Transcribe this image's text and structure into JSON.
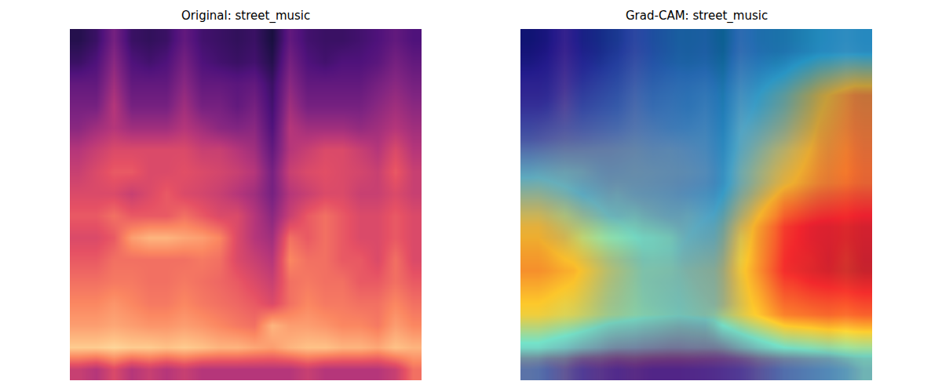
{
  "chart_data": [
    {
      "type": "heatmap",
      "title": "Original: street_music",
      "tick_labels": false,
      "zlim": [
        0,
        1
      ],
      "z": [
        [
          0.15,
          0.2,
          0.35,
          0.2,
          0.18,
          0.2,
          0.3,
          0.22,
          0.2,
          0.18,
          0.2,
          0.12,
          0.3,
          0.22,
          0.2,
          0.2,
          0.22,
          0.25,
          0.3,
          0.25
        ],
        [
          0.2,
          0.25,
          0.4,
          0.25,
          0.22,
          0.25,
          0.35,
          0.25,
          0.22,
          0.2,
          0.22,
          0.15,
          0.35,
          0.25,
          0.22,
          0.25,
          0.25,
          0.28,
          0.35,
          0.3
        ],
        [
          0.3,
          0.3,
          0.45,
          0.3,
          0.3,
          0.3,
          0.4,
          0.3,
          0.3,
          0.28,
          0.3,
          0.2,
          0.4,
          0.3,
          0.3,
          0.3,
          0.3,
          0.35,
          0.4,
          0.35
        ],
        [
          0.35,
          0.35,
          0.5,
          0.35,
          0.35,
          0.35,
          0.45,
          0.35,
          0.35,
          0.3,
          0.35,
          0.22,
          0.45,
          0.35,
          0.35,
          0.35,
          0.35,
          0.4,
          0.45,
          0.4
        ],
        [
          0.4,
          0.45,
          0.5,
          0.45,
          0.45,
          0.45,
          0.5,
          0.45,
          0.4,
          0.38,
          0.4,
          0.25,
          0.5,
          0.45,
          0.45,
          0.45,
          0.42,
          0.45,
          0.5,
          0.45
        ],
        [
          0.5,
          0.55,
          0.6,
          0.6,
          0.6,
          0.6,
          0.6,
          0.55,
          0.55,
          0.5,
          0.45,
          0.3,
          0.5,
          0.55,
          0.6,
          0.6,
          0.55,
          0.5,
          0.6,
          0.5
        ],
        [
          0.55,
          0.6,
          0.65,
          0.65,
          0.6,
          0.6,
          0.62,
          0.6,
          0.58,
          0.55,
          0.5,
          0.35,
          0.55,
          0.6,
          0.62,
          0.6,
          0.58,
          0.55,
          0.65,
          0.55
        ],
        [
          0.6,
          0.6,
          0.6,
          0.55,
          0.6,
          0.65,
          0.6,
          0.58,
          0.55,
          0.5,
          0.45,
          0.35,
          0.5,
          0.55,
          0.6,
          0.6,
          0.55,
          0.55,
          0.6,
          0.55
        ],
        [
          0.65,
          0.65,
          0.7,
          0.65,
          0.65,
          0.65,
          0.7,
          0.65,
          0.6,
          0.6,
          0.5,
          0.4,
          0.55,
          0.65,
          0.7,
          0.65,
          0.6,
          0.6,
          0.65,
          0.6
        ],
        [
          0.6,
          0.6,
          0.65,
          0.8,
          0.85,
          0.85,
          0.82,
          0.8,
          0.75,
          0.6,
          0.5,
          0.45,
          0.7,
          0.65,
          0.7,
          0.65,
          0.6,
          0.6,
          0.65,
          0.6
        ],
        [
          0.65,
          0.65,
          0.7,
          0.7,
          0.7,
          0.7,
          0.7,
          0.72,
          0.7,
          0.6,
          0.55,
          0.5,
          0.75,
          0.7,
          0.7,
          0.65,
          0.65,
          0.6,
          0.7,
          0.6
        ],
        [
          0.7,
          0.7,
          0.72,
          0.72,
          0.7,
          0.7,
          0.72,
          0.7,
          0.68,
          0.65,
          0.6,
          0.55,
          0.7,
          0.72,
          0.7,
          0.7,
          0.65,
          0.65,
          0.7,
          0.65
        ],
        [
          0.75,
          0.75,
          0.78,
          0.75,
          0.72,
          0.72,
          0.75,
          0.72,
          0.7,
          0.68,
          0.65,
          0.6,
          0.7,
          0.75,
          0.72,
          0.72,
          0.7,
          0.7,
          0.75,
          0.7
        ],
        [
          0.8,
          0.8,
          0.82,
          0.8,
          0.78,
          0.78,
          0.8,
          0.78,
          0.75,
          0.72,
          0.7,
          0.85,
          0.8,
          0.8,
          0.78,
          0.75,
          0.75,
          0.72,
          0.8,
          0.75
        ],
        [
          0.9,
          0.9,
          0.92,
          0.9,
          0.9,
          0.88,
          0.9,
          0.88,
          0.85,
          0.85,
          0.82,
          0.8,
          0.85,
          0.88,
          0.88,
          0.85,
          0.85,
          0.82,
          0.88,
          0.85
        ],
        [
          0.55,
          0.5,
          0.6,
          0.5,
          0.55,
          0.5,
          0.55,
          0.5,
          0.5,
          0.5,
          0.5,
          0.5,
          0.5,
          0.55,
          0.5,
          0.5,
          0.5,
          0.5,
          0.55,
          0.7
        ]
      ]
    },
    {
      "type": "heatmap",
      "title": "Grad-CAM: street_music",
      "tick_labels": false,
      "zlim": [
        0,
        1
      ],
      "z": [
        [
          0.15,
          0.2,
          0.35,
          0.2,
          0.18,
          0.2,
          0.3,
          0.22,
          0.2,
          0.18,
          0.2,
          0.12,
          0.3,
          0.22,
          0.2,
          0.2,
          0.22,
          0.25,
          0.3,
          0.25
        ],
        [
          0.2,
          0.25,
          0.4,
          0.25,
          0.22,
          0.25,
          0.35,
          0.25,
          0.22,
          0.2,
          0.22,
          0.15,
          0.35,
          0.25,
          0.22,
          0.25,
          0.25,
          0.28,
          0.35,
          0.3
        ],
        [
          0.3,
          0.3,
          0.45,
          0.3,
          0.3,
          0.3,
          0.4,
          0.3,
          0.3,
          0.28,
          0.3,
          0.2,
          0.4,
          0.3,
          0.3,
          0.3,
          0.3,
          0.35,
          0.4,
          0.35
        ],
        [
          0.35,
          0.35,
          0.5,
          0.35,
          0.35,
          0.35,
          0.45,
          0.35,
          0.35,
          0.3,
          0.35,
          0.22,
          0.45,
          0.35,
          0.35,
          0.35,
          0.35,
          0.4,
          0.45,
          0.4
        ],
        [
          0.4,
          0.45,
          0.5,
          0.45,
          0.45,
          0.45,
          0.5,
          0.45,
          0.4,
          0.38,
          0.4,
          0.25,
          0.5,
          0.45,
          0.45,
          0.45,
          0.42,
          0.45,
          0.5,
          0.45
        ],
        [
          0.5,
          0.55,
          0.6,
          0.6,
          0.6,
          0.6,
          0.6,
          0.55,
          0.55,
          0.5,
          0.45,
          0.3,
          0.5,
          0.55,
          0.6,
          0.6,
          0.55,
          0.5,
          0.6,
          0.5
        ],
        [
          0.55,
          0.6,
          0.65,
          0.65,
          0.6,
          0.6,
          0.62,
          0.6,
          0.58,
          0.55,
          0.5,
          0.35,
          0.55,
          0.6,
          0.62,
          0.6,
          0.58,
          0.55,
          0.65,
          0.55
        ],
        [
          0.6,
          0.6,
          0.6,
          0.55,
          0.6,
          0.65,
          0.6,
          0.58,
          0.55,
          0.5,
          0.45,
          0.35,
          0.5,
          0.55,
          0.6,
          0.6,
          0.55,
          0.55,
          0.6,
          0.55
        ],
        [
          0.65,
          0.65,
          0.7,
          0.65,
          0.65,
          0.65,
          0.7,
          0.65,
          0.6,
          0.6,
          0.5,
          0.4,
          0.55,
          0.65,
          0.7,
          0.65,
          0.6,
          0.6,
          0.65,
          0.6
        ],
        [
          0.6,
          0.6,
          0.65,
          0.8,
          0.85,
          0.85,
          0.82,
          0.8,
          0.75,
          0.6,
          0.5,
          0.45,
          0.7,
          0.65,
          0.7,
          0.65,
          0.6,
          0.6,
          0.65,
          0.6
        ],
        [
          0.65,
          0.65,
          0.7,
          0.7,
          0.7,
          0.7,
          0.7,
          0.72,
          0.7,
          0.6,
          0.55,
          0.5,
          0.75,
          0.7,
          0.7,
          0.65,
          0.65,
          0.6,
          0.7,
          0.6
        ],
        [
          0.7,
          0.7,
          0.72,
          0.72,
          0.7,
          0.7,
          0.72,
          0.7,
          0.68,
          0.65,
          0.6,
          0.55,
          0.7,
          0.72,
          0.7,
          0.7,
          0.65,
          0.65,
          0.7,
          0.65
        ],
        [
          0.75,
          0.75,
          0.78,
          0.75,
          0.72,
          0.72,
          0.75,
          0.72,
          0.7,
          0.68,
          0.65,
          0.6,
          0.7,
          0.75,
          0.72,
          0.72,
          0.7,
          0.7,
          0.75,
          0.7
        ],
        [
          0.8,
          0.8,
          0.82,
          0.8,
          0.78,
          0.78,
          0.8,
          0.78,
          0.75,
          0.72,
          0.7,
          0.85,
          0.8,
          0.8,
          0.78,
          0.75,
          0.75,
          0.72,
          0.8,
          0.75
        ],
        [
          0.9,
          0.9,
          0.92,
          0.9,
          0.9,
          0.88,
          0.9,
          0.88,
          0.85,
          0.85,
          0.82,
          0.8,
          0.85,
          0.88,
          0.88,
          0.85,
          0.85,
          0.82,
          0.88,
          0.85
        ],
        [
          0.55,
          0.5,
          0.6,
          0.5,
          0.55,
          0.5,
          0.55,
          0.5,
          0.5,
          0.5,
          0.5,
          0.5,
          0.5,
          0.55,
          0.5,
          0.5,
          0.5,
          0.5,
          0.55,
          0.7
        ]
      ],
      "cam_zlim": [
        0,
        1
      ],
      "cam": [
        [
          0.05,
          0.08,
          0.15,
          0.2,
          0.25,
          0.25,
          0.28,
          0.3,
          0.35,
          0.35
        ],
        [
          0.1,
          0.15,
          0.2,
          0.25,
          0.28,
          0.3,
          0.35,
          0.45,
          0.6,
          0.7
        ],
        [
          0.2,
          0.22,
          0.25,
          0.28,
          0.3,
          0.32,
          0.4,
          0.5,
          0.65,
          0.72
        ],
        [
          0.4,
          0.35,
          0.3,
          0.3,
          0.3,
          0.32,
          0.45,
          0.6,
          0.7,
          0.75
        ],
        [
          0.6,
          0.5,
          0.4,
          0.35,
          0.35,
          0.4,
          0.6,
          0.85,
          0.9,
          0.92
        ],
        [
          0.7,
          0.65,
          0.5,
          0.4,
          0.4,
          0.45,
          0.65,
          0.88,
          0.92,
          0.95
        ],
        [
          0.6,
          0.55,
          0.45,
          0.4,
          0.38,
          0.42,
          0.6,
          0.75,
          0.78,
          0.8
        ],
        [
          0.25,
          0.15,
          0.08,
          0.05,
          0.05,
          0.08,
          0.15,
          0.25,
          0.3,
          0.35
        ]
      ]
    }
  ]
}
